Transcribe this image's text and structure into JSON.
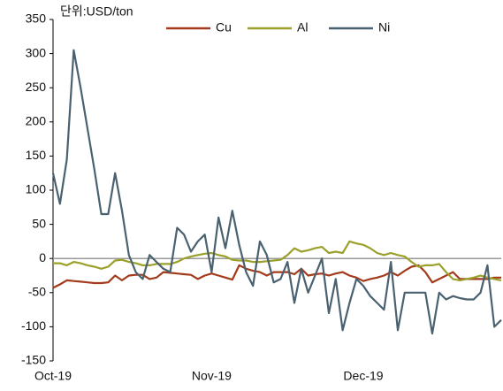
{
  "chart_data": {
    "type": "line",
    "annotation": "단위:USD/ton",
    "categories": [
      "Oct-19",
      null,
      null,
      null,
      null,
      null,
      null,
      null,
      null,
      null,
      null,
      null,
      null,
      null,
      null,
      null,
      null,
      null,
      null,
      null,
      null,
      null,
      null,
      "Nov-19",
      null,
      null,
      null,
      null,
      null,
      null,
      null,
      null,
      null,
      null,
      null,
      null,
      null,
      null,
      null,
      null,
      null,
      null,
      null,
      null,
      null,
      "Dec-19",
      null,
      null,
      null,
      null,
      null,
      null,
      null,
      null,
      null,
      null,
      null,
      null,
      null,
      null,
      null,
      null,
      null,
      null,
      null,
      null
    ],
    "series": [
      {
        "name": "Cu",
        "color": "#a33a1c",
        "values": [
          -43,
          -38,
          -32,
          -33,
          -34,
          -35,
          -36,
          -36,
          -35,
          -25,
          -32,
          -25,
          -24,
          -24,
          -30,
          -28,
          -20,
          -21,
          -22,
          -23,
          -24,
          -30,
          -25,
          -22,
          -25,
          -28,
          -31,
          -10,
          -15,
          -18,
          -20,
          -25,
          -20,
          -20,
          -20,
          -23,
          -15,
          -25,
          -23,
          -22,
          -25,
          -22,
          -20,
          -25,
          -28,
          -33,
          -30,
          -28,
          -25,
          -20,
          -25,
          -18,
          -12,
          -10,
          -20,
          -35,
          -30,
          -25,
          -20,
          -30,
          -30,
          -30,
          -30,
          -30,
          -28,
          -28
        ]
      },
      {
        "name": "Al",
        "color": "#9aa02a",
        "values": [
          -7,
          -7,
          -10,
          -5,
          -7,
          -10,
          -12,
          -15,
          -12,
          -3,
          -2,
          -5,
          -7,
          -10,
          -10,
          -8,
          -8,
          -8,
          -5,
          0,
          3,
          5,
          7,
          8,
          5,
          3,
          -2,
          -3,
          -3,
          -5,
          -5,
          -4,
          -3,
          -2,
          5,
          15,
          10,
          12,
          15,
          17,
          8,
          10,
          8,
          25,
          22,
          20,
          15,
          8,
          5,
          8,
          5,
          3,
          -5,
          -12,
          -10,
          -10,
          -8,
          -20,
          -30,
          -32,
          -30,
          -28,
          -25,
          -28,
          -30,
          -32
        ]
      },
      {
        "name": "Ni",
        "color": "#4a6170",
        "values": [
          125,
          80,
          145,
          305,
          250,
          190,
          130,
          65,
          65,
          125,
          70,
          5,
          -20,
          -30,
          5,
          -5,
          -15,
          -20,
          45,
          35,
          10,
          25,
          35,
          -20,
          60,
          15,
          70,
          20,
          -20,
          -40,
          25,
          5,
          -35,
          -30,
          -5,
          -65,
          -15,
          -50,
          -25,
          0,
          -80,
          -30,
          -105,
          -65,
          -30,
          -40,
          -55,
          -65,
          -75,
          -5,
          -105,
          -50,
          -50,
          -50,
          -50,
          -110,
          -50,
          -60,
          -55,
          -58,
          -60,
          -60,
          -50,
          -10,
          -100,
          -90
        ]
      }
    ],
    "ylim": [
      -150,
      350
    ],
    "yticks": [
      -150,
      -100,
      -50,
      0,
      50,
      100,
      150,
      200,
      250,
      300,
      350
    ],
    "legend": "top",
    "grid": false
  }
}
